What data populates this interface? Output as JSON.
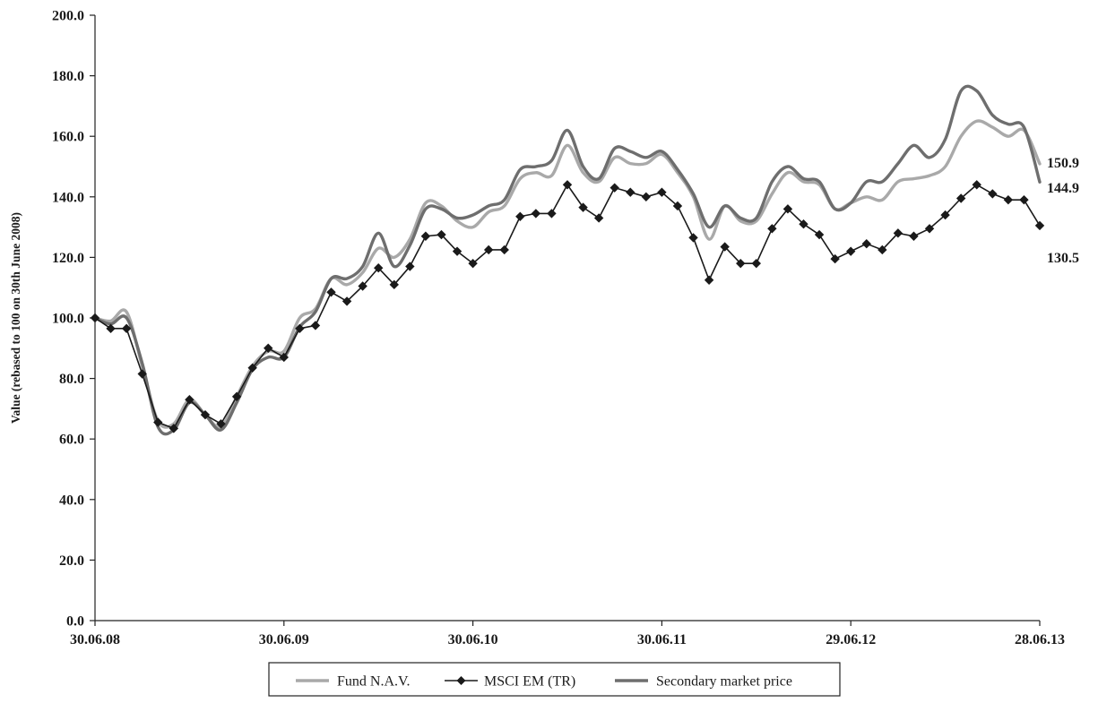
{
  "chart_data": {
    "type": "line",
    "title": "",
    "xlabel": "",
    "ylabel": "Value (rebased to 100 on 30th June 2008)",
    "ylim": [
      0,
      200
    ],
    "yticks": [
      "0.0",
      "20.0",
      "40.0",
      "60.0",
      "80.0",
      "100.0",
      "120.0",
      "140.0",
      "160.0",
      "180.0",
      "200.0"
    ],
    "xticks": [
      "30.06.08",
      "30.06.09",
      "30.06.10",
      "30.06.11",
      "29.06.12",
      "28.06.13"
    ],
    "grid": false,
    "legend_position": "bottom",
    "series": [
      {
        "name": "Fund N.A.V.",
        "color": "#a9a9a9",
        "marker": "none",
        "end_label": "150.9",
        "values": [
          100,
          99,
          102,
          84,
          66,
          65,
          73,
          68,
          64,
          74,
          84,
          89,
          89,
          100,
          103,
          113,
          111,
          115,
          123,
          120,
          126,
          138,
          137,
          132,
          130,
          135,
          137,
          146,
          148,
          147,
          157,
          148,
          145,
          153,
          151,
          151,
          154,
          148,
          140,
          126,
          137,
          132,
          132,
          141,
          148,
          145,
          144,
          136,
          138,
          140,
          139,
          145,
          146,
          147,
          150,
          160,
          165,
          163,
          160,
          162,
          150.9
        ]
      },
      {
        "name": "MSCI EM (TR)",
        "color": "#1a1a1a",
        "marker": "diamond",
        "end_label": "130.5",
        "values": [
          100,
          96.5,
          96.5,
          81.5,
          65.5,
          63.5,
          73,
          68,
          65,
          74,
          83.5,
          90,
          87,
          96.5,
          97.5,
          108.5,
          105.5,
          110.5,
          116.5,
          111,
          117,
          127,
          127.5,
          122,
          118,
          122.5,
          122.5,
          133.5,
          134.5,
          134.5,
          144,
          136.5,
          133,
          143,
          141.5,
          140,
          141.5,
          137,
          126.5,
          112.5,
          123.5,
          118,
          118,
          129.5,
          136,
          131,
          127.5,
          119.5,
          122,
          124.5,
          122.5,
          128,
          127,
          129.5,
          134,
          139.5,
          144,
          141,
          139,
          139,
          130.5
        ]
      },
      {
        "name": "Secondary market price",
        "color": "#6e6e6e",
        "marker": "none",
        "end_label": "144.9",
        "values": [
          100,
          98,
          100,
          85,
          64,
          63,
          72,
          68,
          63,
          72,
          83,
          87,
          87,
          97,
          102,
          113,
          113,
          117,
          128,
          117,
          124,
          136,
          136,
          133,
          134,
          137,
          139,
          149,
          150,
          152,
          162,
          150,
          146,
          156,
          155,
          153,
          155,
          149,
          141,
          130,
          137,
          133,
          133,
          145,
          150,
          146,
          145,
          136,
          138,
          145,
          145,
          151,
          157,
          153,
          159,
          175,
          175,
          167,
          164,
          163,
          144.9
        ]
      }
    ]
  }
}
